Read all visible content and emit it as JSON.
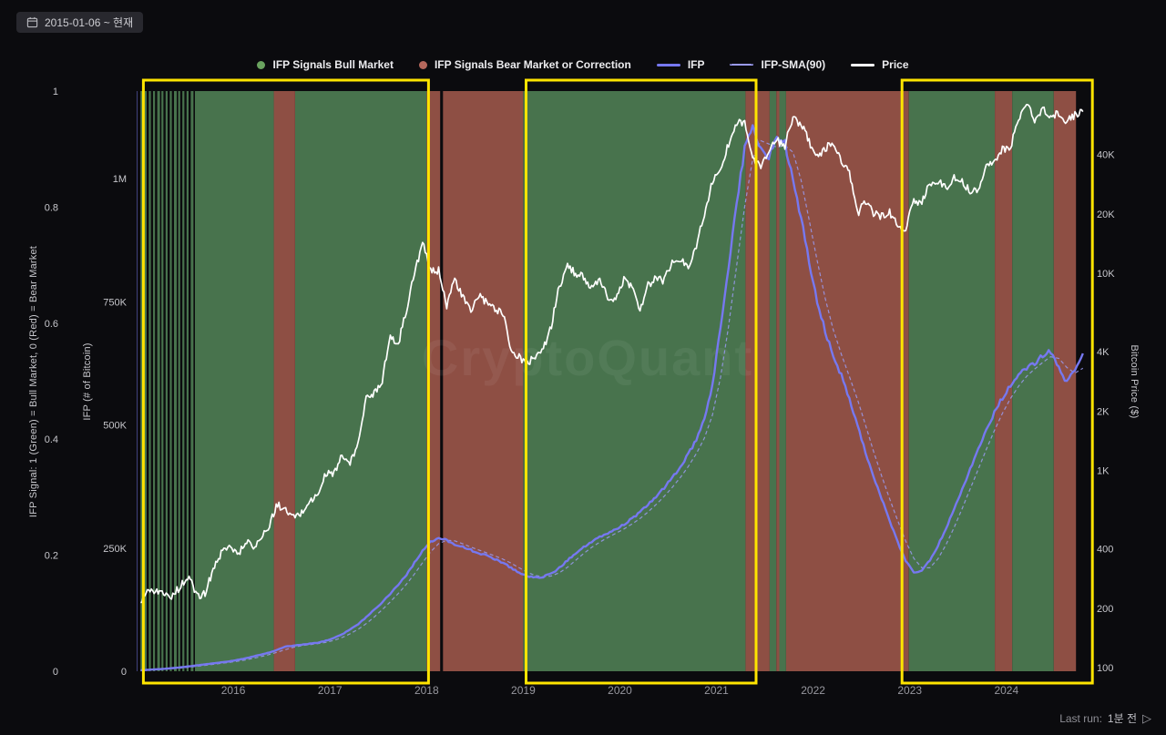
{
  "header": {
    "date_range": {
      "label": "2015-01-06 ~ 현재",
      "icon": "calendar-icon"
    }
  },
  "legend": {
    "items": [
      {
        "label": "IFP Signals Bull Market",
        "swatch": "dot",
        "color": "#6aa35f"
      },
      {
        "label": "IFP Signals Bear Market or Correction",
        "swatch": "dot",
        "color": "#b5685c"
      },
      {
        "label": "IFP",
        "swatch": "line",
        "color": "#7678f0"
      },
      {
        "label": "IFP-SMA(90)",
        "swatch": "dashed-line",
        "color": "#9a9af0"
      },
      {
        "label": "Price",
        "swatch": "line",
        "color": "#ffffff"
      }
    ]
  },
  "footer": {
    "last_run_label": "Last run:",
    "last_run_value": "1분 전",
    "icon": "run-arrow-icon"
  },
  "chart_data": {
    "type": "line",
    "watermark": "CryptoQuant",
    "x_domain": [
      2015.0,
      2024.85
    ],
    "x_ticks": [
      2016,
      2017,
      2018,
      2019,
      2020,
      2021,
      2022,
      2023,
      2024
    ],
    "axes": {
      "signal": {
        "label": "IFP Signal: 1 (Green) = Bull Market, 0 (Red) = Bear Market",
        "range": [
          0,
          1
        ],
        "ticks": [
          {
            "label": "1",
            "value": 1
          },
          {
            "label": "0.8",
            "value": 0.8
          },
          {
            "label": "0.6",
            "value": 0.6
          },
          {
            "label": "0.4",
            "value": 0.4
          },
          {
            "label": "0.2",
            "value": 0.2
          },
          {
            "label": "0",
            "value": 0
          }
        ]
      },
      "ifp": {
        "label": "IFP (# of Bitcoin)",
        "range": [
          0,
          1180000
        ],
        "ticks": [
          {
            "label": "1M",
            "value": 1000000
          },
          {
            "label": "750K",
            "value": 750000
          },
          {
            "label": "500K",
            "value": 500000
          },
          {
            "label": "250K",
            "value": 250000
          },
          {
            "label": "0",
            "value": 0
          }
        ]
      },
      "price": {
        "label": "Bitcoin Price ($)",
        "scale": "log",
        "ticks": [
          {
            "label": "40K",
            "value": 40000
          },
          {
            "label": "20K",
            "value": 20000
          },
          {
            "label": "10K",
            "value": 10000
          },
          {
            "label": "4K",
            "value": 4000
          },
          {
            "label": "2K",
            "value": 2000
          },
          {
            "label": "1K",
            "value": 1000
          },
          {
            "label": "400",
            "value": 400
          },
          {
            "label": "200",
            "value": 200
          },
          {
            "label": "100",
            "value": 100
          }
        ]
      }
    },
    "signal_colors": {
      "bull": "#48734d",
      "bear": "#8e4f44"
    },
    "signal_regions": [
      {
        "start": 2015.04,
        "end": 2015.62,
        "signal": "bull",
        "style": "striped"
      },
      {
        "start": 2015.62,
        "end": 2016.42,
        "signal": "bull"
      },
      {
        "start": 2016.42,
        "end": 2016.64,
        "signal": "bear"
      },
      {
        "start": 2016.64,
        "end": 2018.0,
        "signal": "bull"
      },
      {
        "start": 2018.0,
        "end": 2018.14,
        "signal": "bear"
      },
      {
        "start": 2018.17,
        "end": 2019.0,
        "signal": "bear"
      },
      {
        "start": 2019.0,
        "end": 2021.3,
        "signal": "bull"
      },
      {
        "start": 2021.3,
        "end": 2021.55,
        "signal": "bear"
      },
      {
        "start": 2021.55,
        "end": 2021.62,
        "signal": "bull"
      },
      {
        "start": 2021.62,
        "end": 2021.65,
        "signal": "bear"
      },
      {
        "start": 2021.65,
        "end": 2021.72,
        "signal": "bull"
      },
      {
        "start": 2021.72,
        "end": 2022.99,
        "signal": "bear"
      },
      {
        "start": 2022.99,
        "end": 2023.88,
        "signal": "bull"
      },
      {
        "start": 2023.88,
        "end": 2024.06,
        "signal": "bear"
      },
      {
        "start": 2024.06,
        "end": 2024.49,
        "signal": "bull"
      },
      {
        "start": 2024.49,
        "end": 2024.72,
        "signal": "bear"
      }
    ],
    "series": {
      "price": {
        "name": "Price",
        "color": "#ffffff",
        "start_month": "2015-01",
        "unit": "USD",
        "values": [
          218,
          254,
          244,
          236,
          230,
          263,
          284,
          230,
          236,
          314,
          377,
          430,
          368,
          437,
          416,
          448,
          531,
          673,
          624,
          575,
          609,
          700,
          745,
          963,
          970,
          1180,
          1080,
          1350,
          2300,
          2480,
          2875,
          4700,
          4360,
          6450,
          9900,
          14100,
          10200,
          10300,
          6900,
          9240,
          7500,
          6400,
          7750,
          7000,
          6600,
          6300,
          4000,
          3740,
          3460,
          3850,
          4100,
          5350,
          8550,
          10800,
          10000,
          9600,
          8300,
          9150,
          7550,
          7200,
          9350,
          8550,
          6450,
          8650,
          9450,
          9140,
          11350,
          11650,
          10780,
          13800,
          19700,
          29000,
          33100,
          45200,
          58800,
          57750,
          37300,
          35000,
          41500,
          47150,
          43800,
          61300,
          57000,
          46200,
          38500,
          43200,
          45500,
          37650,
          31800,
          19900,
          23300,
          20050,
          19400,
          20500,
          17150,
          16550,
          23100,
          23150,
          28450,
          29250,
          27200,
          30450,
          29250,
          25950,
          26950,
          34650,
          37700,
          42250,
          42550,
          61150,
          71300,
          60600,
          67500,
          62700,
          64600,
          59000,
          63300,
          66000
        ]
      },
      "ifp": {
        "name": "IFP",
        "color": "#7678f0",
        "start_month": "2015-01",
        "unit": "BTC",
        "values": [
          2000,
          3000,
          4000,
          5000,
          6500,
          8000,
          10000,
          12000,
          14000,
          16000,
          18000,
          20000,
          23000,
          26000,
          30000,
          34000,
          38000,
          44000,
          50000,
          52000,
          54000,
          56000,
          58000,
          62000,
          68000,
          75000,
          85000,
          95000,
          110000,
          125000,
          140000,
          158000,
          176000,
          196000,
          220000,
          245000,
          262000,
          270000,
          266000,
          258000,
          252000,
          246000,
          240000,
          234000,
          228000,
          220000,
          210000,
          200000,
          193000,
          190000,
          192000,
          198000,
          210000,
          225000,
          240000,
          252000,
          262000,
          272000,
          280000,
          288000,
          298000,
          310000,
          322000,
          338000,
          355000,
          372000,
          392000,
          415000,
          440000,
          470000,
          510000,
          580000,
          700000,
          820000,
          950000,
          1060000,
          1110000,
          1060000,
          1040000,
          1090000,
          1070000,
          1000000,
          920000,
          830000,
          750000,
          690000,
          640000,
          600000,
          555000,
          500000,
          445000,
          395000,
          350000,
          305000,
          262000,
          225000,
          200000,
          205000,
          225000,
          255000,
          290000,
          330000,
          370000,
          410000,
          450000,
          490000,
          525000,
          555000,
          580000,
          600000,
          615000,
          625000,
          640000,
          650000,
          615000,
          585000,
          615000,
          645000
        ]
      },
      "ifp_sma": {
        "name": "IFP-SMA(90)",
        "color": "#9a9af0",
        "derived": "trailing 3-month mean of ifp"
      }
    },
    "annotations": {
      "color": "#ffe400",
      "boxes": [
        {
          "start": 2015.07,
          "end": 2018.02
        },
        {
          "start": 2019.03,
          "end": 2021.41
        },
        {
          "start": 2022.92,
          "end": 2024.89
        }
      ]
    }
  }
}
